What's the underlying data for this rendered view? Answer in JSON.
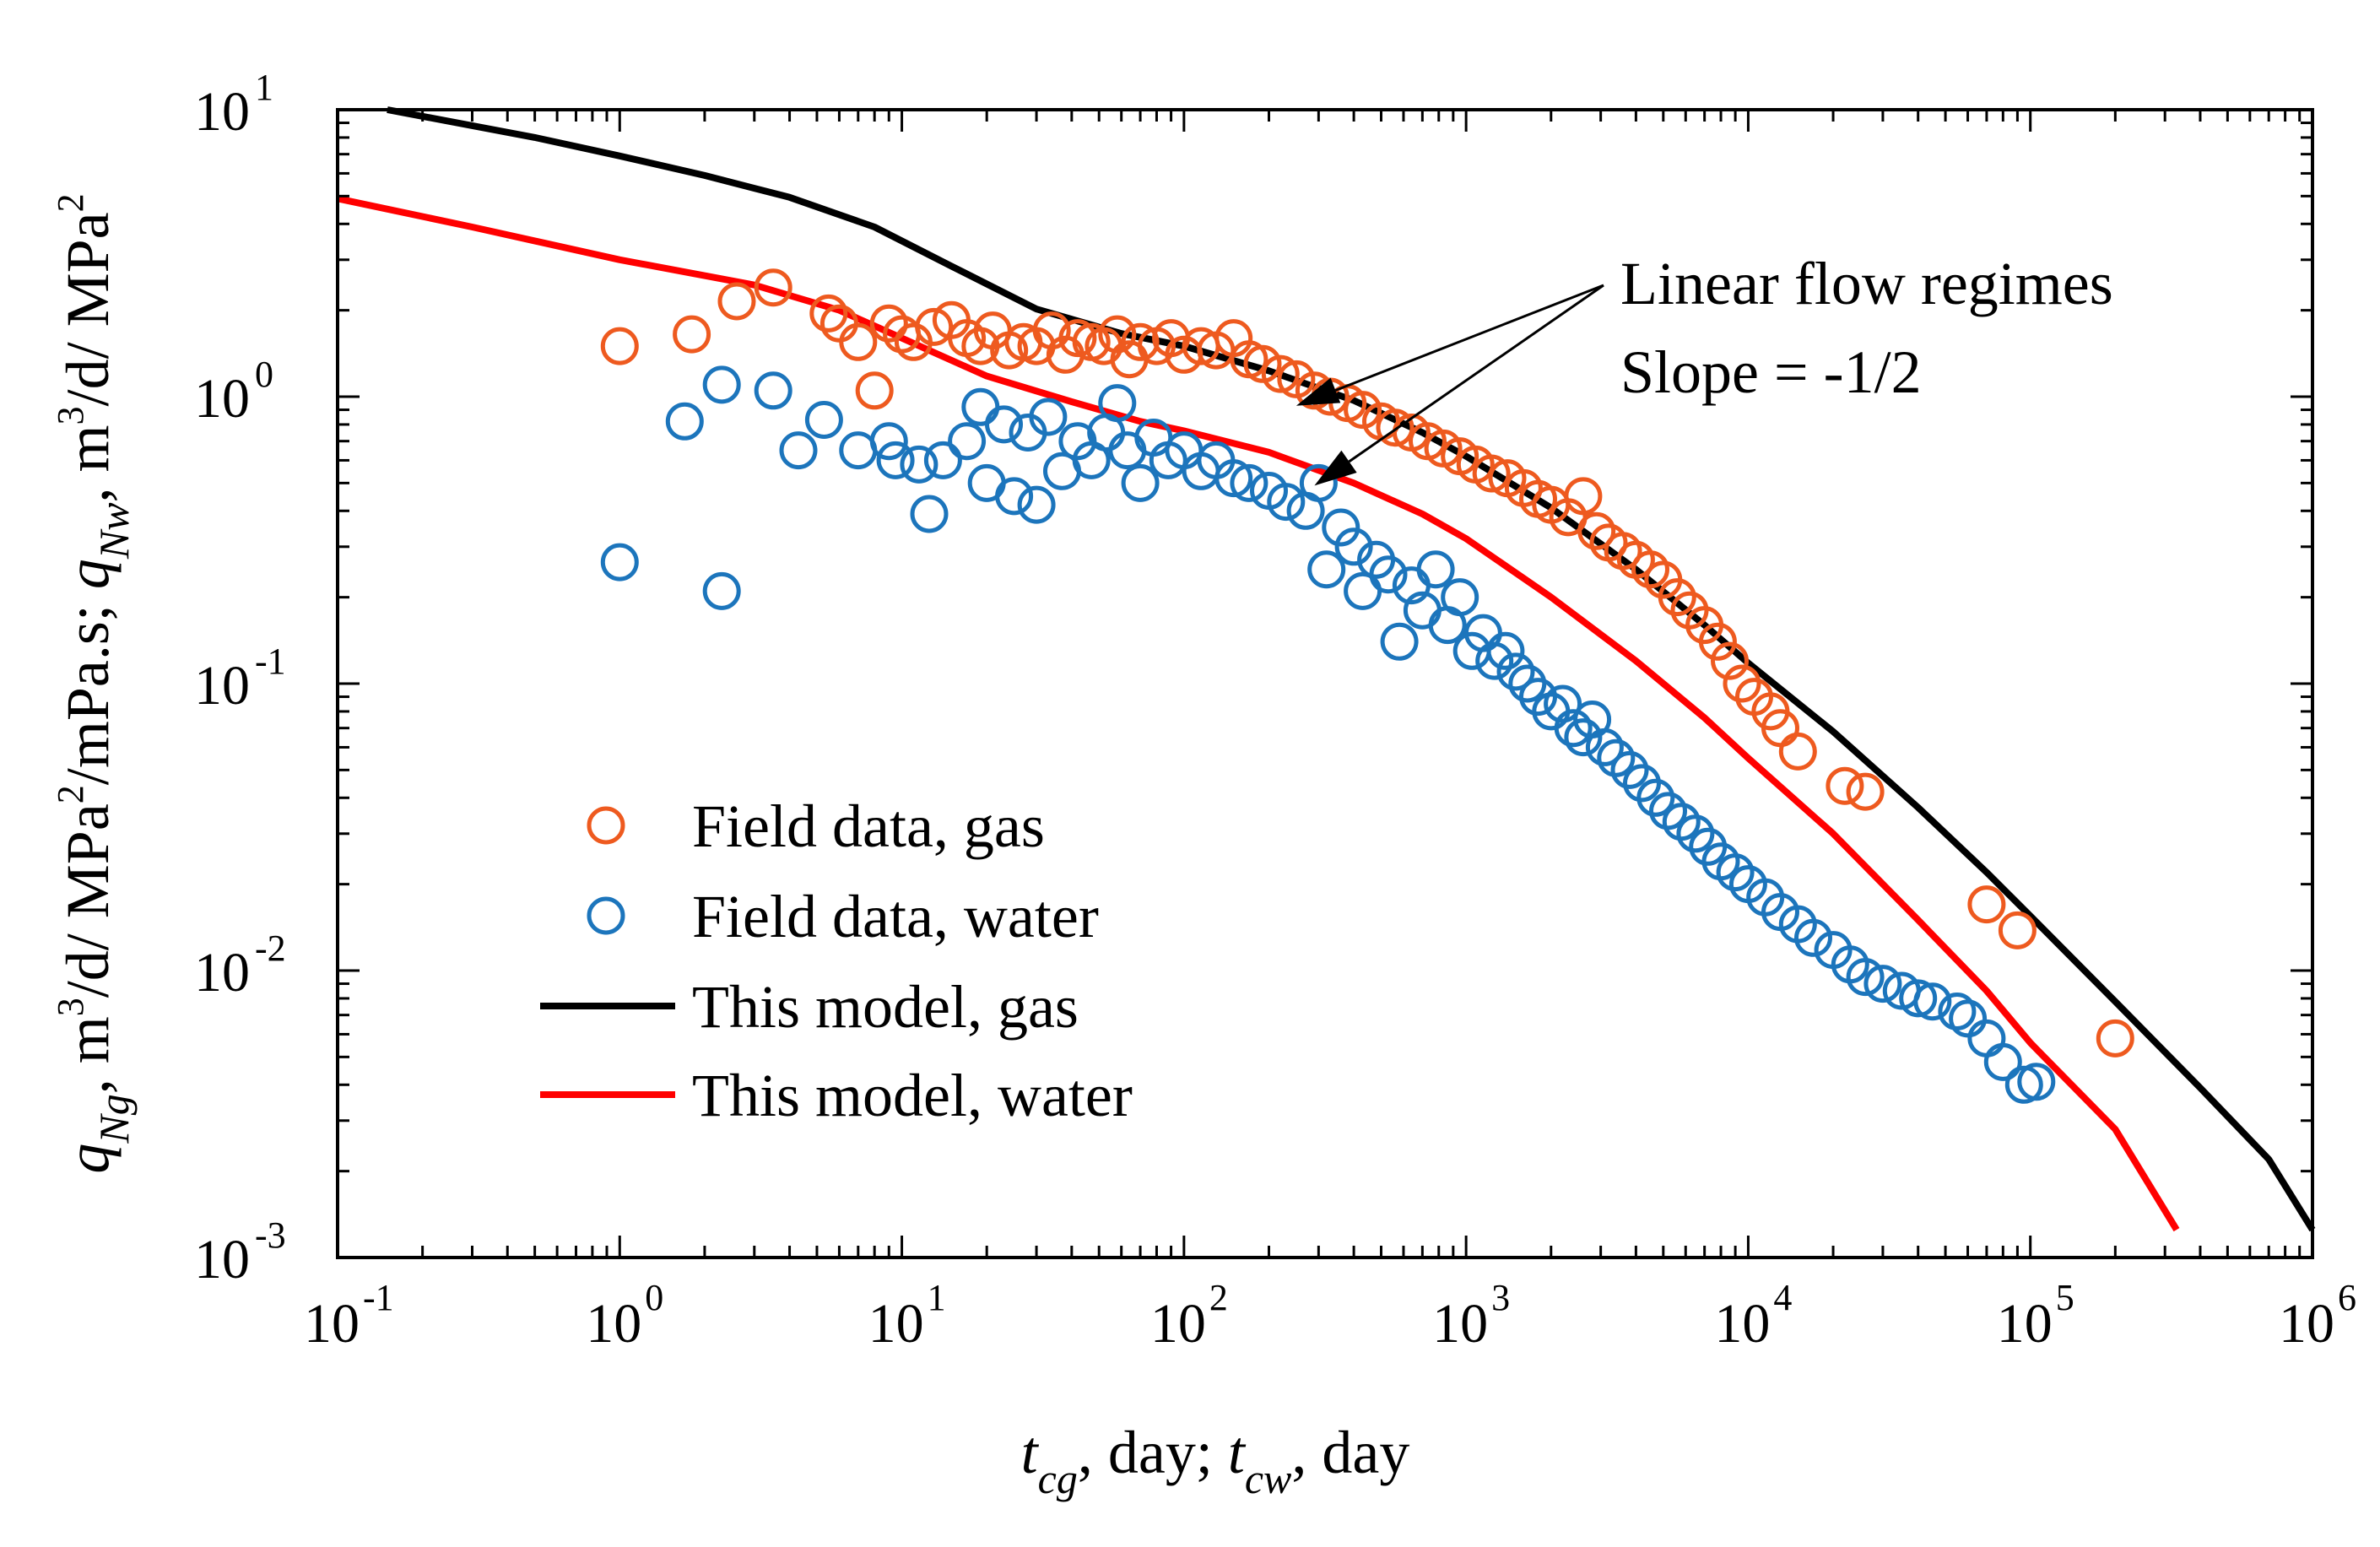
{
  "chart_data": {
    "type": "scatter",
    "xscale": "log",
    "yscale": "log",
    "xlim": [
      0.1,
      1000000
    ],
    "ylim": [
      0.001,
      10
    ],
    "grid": false,
    "legend_position": "bottom-left",
    "x_ticks": [
      {
        "base": "10",
        "exp": "-1",
        "value": 0.1
      },
      {
        "base": "10",
        "exp": "0",
        "value": 1
      },
      {
        "base": "10",
        "exp": "1",
        "value": 10
      },
      {
        "base": "10",
        "exp": "2",
        "value": 100
      },
      {
        "base": "10",
        "exp": "3",
        "value": 1000
      },
      {
        "base": "10",
        "exp": "4",
        "value": 10000
      },
      {
        "base": "10",
        "exp": "5",
        "value": 100000
      },
      {
        "base": "10",
        "exp": "6",
        "value": 1000000
      }
    ],
    "y_ticks": [
      {
        "base": "10",
        "exp": "-3",
        "value": 0.001
      },
      {
        "base": "10",
        "exp": "-2",
        "value": 0.01
      },
      {
        "base": "10",
        "exp": "-1",
        "value": 0.1
      },
      {
        "base": "10",
        "exp": "0",
        "value": 1
      },
      {
        "base": "10",
        "exp": "1",
        "value": 10
      }
    ],
    "xlabel": {
      "p1": "t",
      "s1": "cg",
      "p2": ", day; ",
      "p3": "t",
      "s3": "cw",
      "p4": ", day"
    },
    "ylabel": {
      "p1": "q",
      "s1": "Ng",
      "p2": ", m",
      "e2": "3",
      "p3": "/d/ MPa",
      "e3": "2",
      "p4": "/mPa.s; ",
      "p5": "q",
      "s5": "Nw",
      "p6": ", m",
      "e6": "3",
      "p7": "/d/ MPa",
      "e7": "2"
    },
    "annotation": {
      "line1": "Linear flow regimes",
      "line2": "Slope = -1/2",
      "targets": [
        {
          "x": 250,
          "y": 0.93
        },
        {
          "x": 290,
          "y": 0.49
        }
      ]
    },
    "series": [
      {
        "name": "Field data, gas",
        "kind": "marker",
        "color": "#EE5A1F",
        "points": [
          [
            1.0,
            1.5
          ],
          [
            1.8,
            1.65
          ],
          [
            2.6,
            2.15
          ],
          [
            3.5,
            2.4
          ],
          [
            5.5,
            1.95
          ],
          [
            6,
            1.8
          ],
          [
            7,
            1.55
          ],
          [
            8,
            1.05
          ],
          [
            9,
            1.8
          ],
          [
            10,
            1.65
          ],
          [
            11,
            1.55
          ],
          [
            13,
            1.75
          ],
          [
            15,
            1.85
          ],
          [
            17,
            1.6
          ],
          [
            19,
            1.5
          ],
          [
            21,
            1.7
          ],
          [
            24,
            1.45
          ],
          [
            27,
            1.55
          ],
          [
            30,
            1.5
          ],
          [
            34,
            1.7
          ],
          [
            38,
            1.4
          ],
          [
            42,
            1.6
          ],
          [
            47,
            1.55
          ],
          [
            52,
            1.5
          ],
          [
            58,
            1.65
          ],
          [
            64,
            1.35
          ],
          [
            70,
            1.55
          ],
          [
            80,
            1.5
          ],
          [
            90,
            1.6
          ],
          [
            100,
            1.4
          ],
          [
            115,
            1.5
          ],
          [
            130,
            1.45
          ],
          [
            150,
            1.6
          ],
          [
            170,
            1.35
          ],
          [
            190,
            1.3
          ],
          [
            220,
            1.2
          ],
          [
            250,
            1.15
          ],
          [
            290,
            1.05
          ],
          [
            330,
            1.0
          ],
          [
            380,
            0.95
          ],
          [
            430,
            0.9
          ],
          [
            500,
            0.82
          ],
          [
            560,
            0.78
          ],
          [
            640,
            0.75
          ],
          [
            730,
            0.7
          ],
          [
            830,
            0.66
          ],
          [
            950,
            0.62
          ],
          [
            1080,
            0.58
          ],
          [
            1230,
            0.54
          ],
          [
            1400,
            0.52
          ],
          [
            1600,
            0.48
          ],
          [
            1800,
            0.44
          ],
          [
            2000,
            0.42
          ],
          [
            2300,
            0.38
          ],
          [
            2600,
            0.45
          ],
          [
            2900,
            0.34
          ],
          [
            3200,
            0.31
          ],
          [
            3600,
            0.29
          ],
          [
            4000,
            0.27
          ],
          [
            4500,
            0.25
          ],
          [
            5000,
            0.23
          ],
          [
            5600,
            0.2
          ],
          [
            6200,
            0.18
          ],
          [
            7000,
            0.16
          ],
          [
            7800,
            0.14
          ],
          [
            8600,
            0.12
          ],
          [
            9500,
            0.1
          ],
          [
            10500,
            0.09
          ],
          [
            12000,
            0.08
          ],
          [
            13000,
            0.07
          ],
          [
            15000,
            0.058
          ],
          [
            22000,
            0.044
          ],
          [
            26000,
            0.042
          ],
          [
            70000,
            0.017
          ],
          [
            90000,
            0.0138
          ],
          [
            200000,
            0.0058
          ]
        ]
      },
      {
        "name": "Field data, water",
        "kind": "marker",
        "color": "#1C75BC",
        "points": [
          [
            1.0,
            0.265
          ],
          [
            1.7,
            0.82
          ],
          [
            2.3,
            1.1
          ],
          [
            2.3,
            0.21
          ],
          [
            3.5,
            1.05
          ],
          [
            4.3,
            0.65
          ],
          [
            5.3,
            0.83
          ],
          [
            7,
            0.65
          ],
          [
            9,
            0.7
          ],
          [
            9.5,
            0.6
          ],
          [
            11.5,
            0.58
          ],
          [
            12.5,
            0.39
          ],
          [
            14,
            0.6
          ],
          [
            17,
            0.7
          ],
          [
            19,
            0.92
          ],
          [
            20,
            0.5
          ],
          [
            23,
            0.8
          ],
          [
            25,
            0.45
          ],
          [
            28,
            0.75
          ],
          [
            30,
            0.42
          ],
          [
            33,
            0.85
          ],
          [
            37,
            0.55
          ],
          [
            42,
            0.7
          ],
          [
            47,
            0.6
          ],
          [
            53,
            0.75
          ],
          [
            58,
            0.95
          ],
          [
            63,
            0.65
          ],
          [
            70,
            0.5
          ],
          [
            78,
            0.72
          ],
          [
            88,
            0.6
          ],
          [
            100,
            0.65
          ],
          [
            115,
            0.55
          ],
          [
            130,
            0.6
          ],
          [
            150,
            0.52
          ],
          [
            170,
            0.5
          ],
          [
            200,
            0.47
          ],
          [
            230,
            0.43
          ],
          [
            270,
            0.4
          ],
          [
            300,
            0.5
          ],
          [
            320,
            0.25
          ],
          [
            360,
            0.35
          ],
          [
            400,
            0.3
          ],
          [
            430,
            0.21
          ],
          [
            480,
            0.27
          ],
          [
            530,
            0.24
          ],
          [
            580,
            0.14
          ],
          [
            640,
            0.22
          ],
          [
            700,
            0.18
          ],
          [
            780,
            0.25
          ],
          [
            860,
            0.16
          ],
          [
            950,
            0.2
          ],
          [
            1050,
            0.13
          ],
          [
            1150,
            0.15
          ],
          [
            1260,
            0.12
          ],
          [
            1380,
            0.13
          ],
          [
            1500,
            0.11
          ],
          [
            1650,
            0.1
          ],
          [
            1800,
            0.09
          ],
          [
            2000,
            0.08
          ],
          [
            2200,
            0.085
          ],
          [
            2400,
            0.07
          ],
          [
            2600,
            0.065
          ],
          [
            2800,
            0.075
          ],
          [
            3100,
            0.06
          ],
          [
            3400,
            0.055
          ],
          [
            3800,
            0.05
          ],
          [
            4200,
            0.045
          ],
          [
            4700,
            0.04
          ],
          [
            5200,
            0.036
          ],
          [
            5800,
            0.033
          ],
          [
            6500,
            0.03
          ],
          [
            7200,
            0.027
          ],
          [
            8000,
            0.024
          ],
          [
            9000,
            0.022
          ],
          [
            10000,
            0.02
          ],
          [
            11500,
            0.018
          ],
          [
            13000,
            0.016
          ],
          [
            15000,
            0.0145
          ],
          [
            17000,
            0.013
          ],
          [
            20000,
            0.0118
          ],
          [
            23000,
            0.0105
          ],
          [
            26000,
            0.0095
          ],
          [
            30000,
            0.009
          ],
          [
            35000,
            0.0085
          ],
          [
            40000,
            0.008
          ],
          [
            45000,
            0.0078
          ],
          [
            55000,
            0.0072
          ],
          [
            60000,
            0.0068
          ],
          [
            70000,
            0.0058
          ],
          [
            80000,
            0.0048
          ],
          [
            95000,
            0.004
          ],
          [
            105000,
            0.0041
          ]
        ]
      },
      {
        "name": "This model, gas",
        "kind": "line",
        "color": "#000000",
        "x": [
          0.15,
          0.5,
          1,
          2,
          4,
          8,
          15,
          30,
          60,
          100,
          200,
          400,
          700,
          1000,
          2000,
          4000,
          7000,
          10000,
          20000,
          40000,
          70000,
          100000,
          200000,
          400000,
          700000,
          1000000
        ],
        "y": [
          10.0,
          8.0,
          6.9,
          5.9,
          4.95,
          3.9,
          2.85,
          2.02,
          1.66,
          1.5,
          1.23,
          0.97,
          0.75,
          0.62,
          0.41,
          0.25,
          0.16,
          0.118,
          0.068,
          0.037,
          0.022,
          0.0155,
          0.0078,
          0.0039,
          0.0022,
          0.00125
        ]
      },
      {
        "name": "This model, water",
        "kind": "line",
        "color": "#FF0000",
        "x": [
          0.1,
          0.3,
          1,
          3,
          6,
          10,
          20,
          40,
          70,
          100,
          200,
          400,
          700,
          1000,
          2000,
          4000,
          7000,
          10000,
          20000,
          40000,
          70000,
          100000,
          200000,
          330000
        ],
        "y": [
          4.9,
          3.9,
          3.0,
          2.45,
          2.0,
          1.6,
          1.18,
          0.96,
          0.82,
          0.76,
          0.64,
          0.5,
          0.39,
          0.32,
          0.2,
          0.12,
          0.076,
          0.055,
          0.03,
          0.015,
          0.0085,
          0.0056,
          0.0028,
          0.00125
        ]
      }
    ]
  }
}
